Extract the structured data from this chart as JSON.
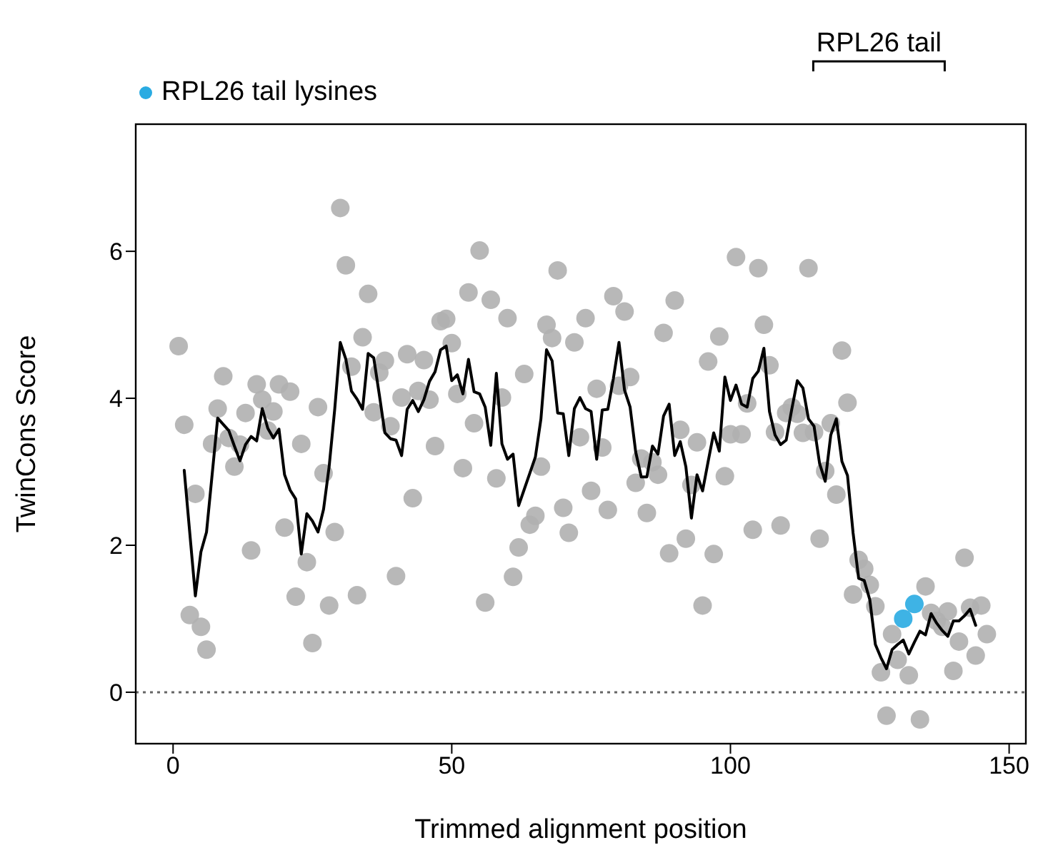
{
  "chart_data": {
    "type": "scatter",
    "xlabel": "Trimmed alignment position",
    "ylabel": "TwinCons Score",
    "xlim": [
      -6.7,
      153
    ],
    "ylim": [
      -0.7,
      7.73
    ],
    "xticks": [
      0,
      50,
      100,
      150
    ],
    "yticks": [
      0,
      2,
      4,
      6
    ],
    "legend": "top left",
    "marker": "circle",
    "ref_lines": [
      {
        "axis": "y",
        "value": 0,
        "color": "#666666",
        "line_style": "dotted"
      }
    ],
    "annotations": [
      "RPL26 tail"
    ],
    "series": [
      {
        "color": "#b0b0b0",
        "x": [
          1,
          2,
          3,
          4,
          5,
          6,
          7,
          8,
          9,
          10,
          11,
          12,
          13,
          14,
          15,
          16,
          17,
          18,
          19,
          20,
          21,
          22,
          23,
          24,
          25,
          26,
          27,
          28,
          29,
          30,
          31,
          32,
          33,
          34,
          35,
          36,
          37,
          38,
          39,
          40,
          41,
          42,
          43,
          44,
          45,
          46,
          47,
          48,
          49,
          50,
          51,
          52,
          53,
          54,
          55,
          56,
          57,
          58,
          59,
          60,
          61,
          62,
          63,
          64,
          65,
          66,
          67,
          68,
          69,
          70,
          71,
          72,
          73,
          74,
          75,
          76,
          77,
          78,
          79,
          80,
          81,
          82,
          83,
          84,
          85,
          86,
          87,
          88,
          89,
          90,
          91,
          92,
          93,
          94,
          95,
          96,
          97,
          98,
          99,
          100,
          101,
          102,
          103,
          104,
          105,
          106,
          107,
          108,
          109,
          110,
          111,
          112,
          113,
          114,
          115,
          116,
          117,
          118,
          119,
          120,
          121,
          122,
          123,
          124,
          125,
          126,
          127,
          128,
          129,
          130,
          131,
          132,
          133,
          134,
          135,
          136,
          137,
          138,
          139,
          140,
          141,
          142,
          143,
          144,
          145,
          146
        ],
        "values": [
          4.71,
          3.64,
          1.05,
          2.7,
          0.89,
          0.58,
          3.38,
          3.86,
          4.3,
          3.46,
          3.07,
          3.37,
          3.8,
          1.93,
          4.19,
          3.98,
          3.56,
          3.82,
          4.19,
          2.24,
          4.09,
          1.3,
          3.38,
          1.77,
          0.67,
          3.88,
          2.98,
          1.18,
          2.18,
          6.59,
          5.81,
          4.43,
          1.32,
          4.83,
          5.42,
          3.81,
          4.35,
          4.51,
          3.62,
          1.58,
          4.01,
          4.6,
          2.64,
          4.1,
          4.52,
          3.98,
          3.35,
          5.05,
          5.08,
          4.75,
          4.06,
          3.05,
          5.44,
          3.66,
          6.01,
          1.22,
          5.34,
          2.91,
          4.01,
          5.09,
          1.57,
          1.97,
          4.33,
          2.28,
          2.4,
          3.07,
          5.0,
          4.82,
          5.74,
          2.51,
          2.17,
          4.76,
          3.47,
          5.09,
          2.74,
          4.13,
          3.33,
          2.48,
          5.39,
          4.17,
          5.18,
          4.29,
          2.85,
          3.18,
          2.44,
          3.13,
          2.96,
          4.89,
          1.89,
          5.33,
          3.57,
          2.09,
          2.82,
          3.4,
          1.18,
          4.5,
          1.88,
          4.84,
          2.94,
          3.51,
          5.92,
          3.51,
          3.93,
          2.21,
          5.77,
          5.0,
          4.45,
          3.54,
          2.27,
          3.8,
          3.88,
          3.79,
          3.53,
          5.77,
          3.54,
          2.09,
          3.01,
          3.66,
          2.69,
          4.65,
          3.94,
          1.33,
          1.8,
          1.68,
          1.46,
          1.17,
          0.27,
          -0.32,
          0.79,
          0.44,
          null,
          0.23,
          null,
          -0.37,
          1.44,
          1.08,
          0.97,
          0.89,
          1.1,
          0.29,
          0.69,
          1.83,
          1.15,
          0.5,
          1.18,
          0.79
        ]
      },
      {
        "name": "RPL26 tail lysines",
        "color": "#29abe2",
        "x": [
          131,
          133
        ],
        "values": [
          1.0,
          1.2
        ]
      },
      {
        "type": "line",
        "color": "#000000",
        "marker": "none",
        "x": [
          2,
          4,
          5,
          6,
          8,
          10,
          11,
          12,
          13,
          14,
          15,
          16,
          17,
          18,
          19,
          20,
          21,
          22,
          23,
          24,
          25,
          26,
          27,
          28,
          29,
          30,
          31,
          32,
          33,
          34,
          35,
          36,
          37,
          38,
          39,
          40,
          41,
          42,
          43,
          44,
          45,
          46,
          47,
          48,
          49,
          50,
          51,
          52,
          53,
          54,
          55,
          56,
          57,
          58,
          59,
          60,
          61,
          62,
          63,
          64,
          65,
          66,
          67,
          68,
          69,
          70,
          71,
          72,
          73,
          74,
          75,
          76,
          77,
          78,
          79,
          80,
          81,
          82,
          83,
          84,
          85,
          86,
          87,
          88,
          89,
          90,
          91,
          92,
          93,
          94,
          95,
          96,
          97,
          98,
          99,
          100,
          101,
          102,
          103,
          104,
          105,
          106,
          107,
          108,
          109,
          110,
          111,
          112,
          113,
          114,
          115,
          116,
          117,
          118,
          119,
          120,
          121,
          122,
          123,
          124,
          125,
          126,
          127,
          128,
          129,
          130,
          131,
          132,
          133,
          134,
          135,
          136,
          137,
          138,
          139,
          140,
          141,
          142,
          143,
          144
        ],
        "values": [
          3.02,
          1.31,
          1.91,
          2.18,
          3.73,
          3.56,
          3.35,
          3.15,
          3.37,
          3.48,
          3.42,
          3.86,
          3.59,
          3.46,
          3.58,
          2.96,
          2.75,
          2.63,
          1.88,
          2.43,
          2.33,
          2.18,
          2.49,
          3.07,
          3.85,
          4.76,
          4.53,
          4.1,
          3.99,
          3.85,
          4.61,
          4.55,
          4.05,
          3.53,
          3.45,
          3.43,
          3.22,
          3.85,
          3.97,
          3.82,
          3.98,
          4.23,
          4.36,
          4.66,
          4.71,
          4.24,
          4.32,
          4.06,
          4.53,
          4.09,
          4.06,
          3.88,
          3.36,
          4.34,
          3.38,
          3.17,
          3.24,
          2.54,
          2.76,
          2.98,
          3.2,
          3.72,
          4.66,
          4.51,
          3.8,
          3.79,
          3.22,
          3.86,
          4.01,
          3.86,
          3.82,
          3.17,
          3.84,
          3.85,
          4.27,
          4.76,
          4.11,
          3.88,
          3.27,
          2.93,
          2.93,
          3.35,
          3.24,
          3.76,
          3.92,
          3.22,
          3.41,
          3.07,
          2.37,
          2.96,
          2.74,
          3.14,
          3.53,
          3.28,
          4.29,
          3.97,
          4.18,
          3.92,
          3.88,
          4.27,
          4.37,
          4.68,
          3.82,
          3.5,
          3.37,
          3.43,
          3.85,
          4.24,
          4.14,
          3.72,
          3.62,
          3.11,
          2.87,
          3.5,
          3.72,
          3.14,
          2.95,
          2.17,
          1.55,
          1.52,
          1.26,
          0.65,
          0.47,
          0.32,
          0.58,
          0.65,
          0.71,
          0.52,
          0.68,
          0.83,
          0.78,
          1.07,
          0.94,
          0.84,
          0.76,
          0.97,
          0.97,
          1.04,
          1.13,
          0.91
        ]
      }
    ]
  }
}
